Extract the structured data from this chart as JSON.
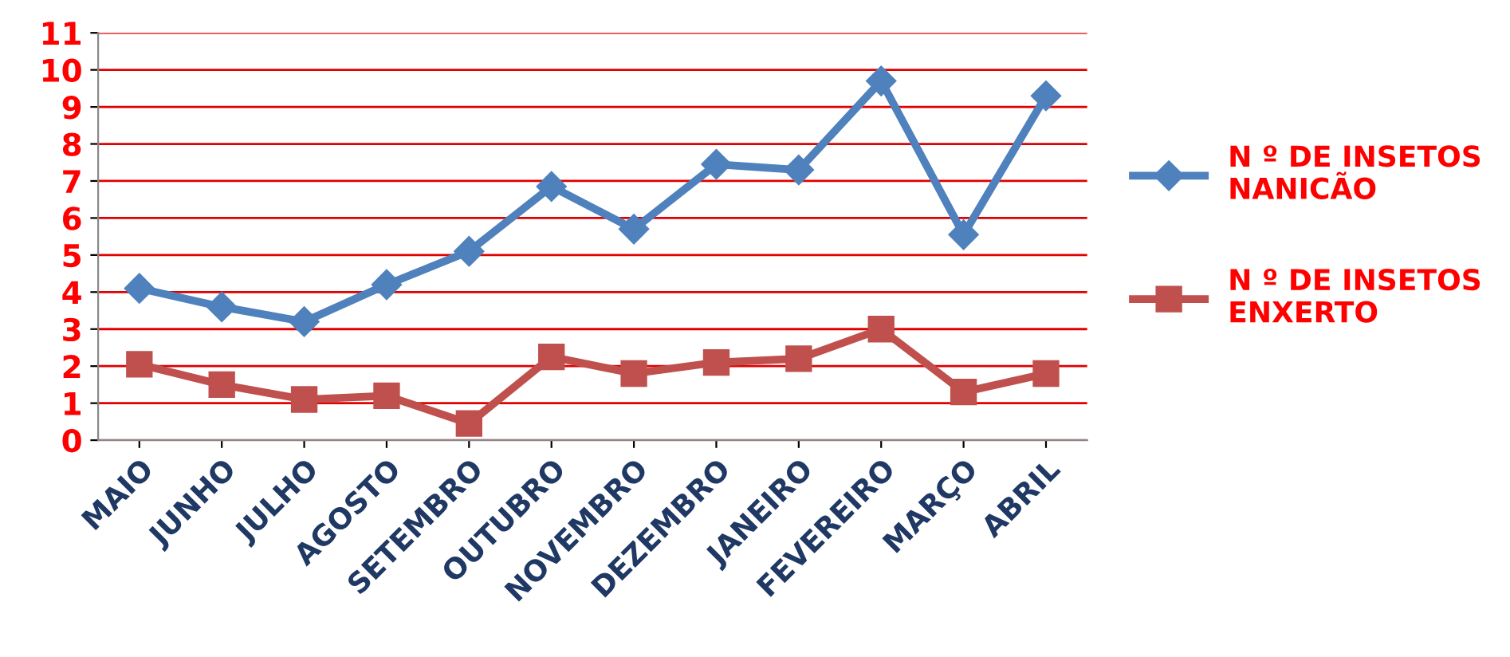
{
  "chart_data": {
    "type": "line",
    "categories": [
      "MAIO",
      "JUNHO",
      "JULHO",
      "AGOSTO",
      "SETEMBRO",
      "OUTUBRO",
      "NOVEMBRO",
      "DEZEMBRO",
      "JANEIRO",
      "FEVEREIRO",
      "MARÇO",
      "ABRIL"
    ],
    "series": [
      {
        "name": "N º DE INSETOS NANICÃO",
        "color": "#4f81bd",
        "marker": "diamond",
        "values": [
          4.1,
          3.6,
          3.2,
          4.2,
          5.1,
          6.85,
          5.7,
          7.45,
          7.3,
          9.7,
          5.55,
          9.3
        ]
      },
      {
        "name": "N º DE INSETOS ENXERTO",
        "color": "#c0504d",
        "marker": "square",
        "values": [
          2.05,
          1.5,
          1.1,
          1.2,
          0.45,
          2.25,
          1.8,
          2.1,
          2.2,
          3.0,
          1.3,
          1.8
        ]
      }
    ],
    "ylim": [
      0,
      11
    ],
    "yticks": [
      0,
      1,
      2,
      3,
      4,
      5,
      6,
      7,
      8,
      9,
      10,
      11
    ],
    "grid": "y",
    "legend": "right",
    "line_style": "solid"
  }
}
